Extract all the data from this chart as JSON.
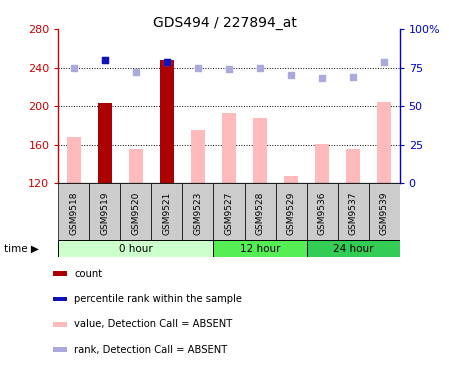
{
  "title": "GDS494 / 227894_at",
  "samples": [
    "GSM9518",
    "GSM9519",
    "GSM9520",
    "GSM9521",
    "GSM9523",
    "GSM9527",
    "GSM9528",
    "GSM9529",
    "GSM9536",
    "GSM9537",
    "GSM9539"
  ],
  "values": [
    168,
    203,
    155,
    248,
    175,
    193,
    188,
    127,
    161,
    155,
    204
  ],
  "ranks_pct": [
    75,
    80,
    72,
    79,
    75,
    74,
    75,
    70,
    68,
    69,
    79
  ],
  "count_bars": [
    null,
    203,
    null,
    248,
    null,
    null,
    null,
    null,
    null,
    null,
    null
  ],
  "rank_dots_blue": [
    null,
    80,
    null,
    79,
    null,
    null,
    null,
    null,
    null,
    null,
    null
  ],
  "ymin": 120,
  "ymax": 280,
  "y2min": 0,
  "y2max": 100,
  "yticks": [
    120,
    160,
    200,
    240,
    280
  ],
  "y2ticks": [
    0,
    25,
    50,
    75,
    100
  ],
  "groups": [
    {
      "label": "0 hour",
      "start": 0,
      "end": 5,
      "color": "#ccffcc"
    },
    {
      "label": "12 hour",
      "start": 5,
      "end": 8,
      "color": "#55ee55"
    },
    {
      "label": "24 hour",
      "start": 8,
      "end": 11,
      "color": "#33cc55"
    }
  ],
  "bar_width": 0.45,
  "value_bar_color": "#ffbbbb",
  "count_bar_color": "#aa0000",
  "rank_dot_color_absent": "#aaaadd",
  "rank_dot_blue": "#1111bb",
  "left_axis_color": "#cc0000",
  "right_axis_color": "#0000cc",
  "legend_items": [
    {
      "color": "#aa0000",
      "label": "count"
    },
    {
      "color": "#1111bb",
      "label": "percentile rank within the sample"
    },
    {
      "color": "#ffbbbb",
      "label": "value, Detection Call = ABSENT"
    },
    {
      "color": "#aaaadd",
      "label": "rank, Detection Call = ABSENT"
    }
  ]
}
